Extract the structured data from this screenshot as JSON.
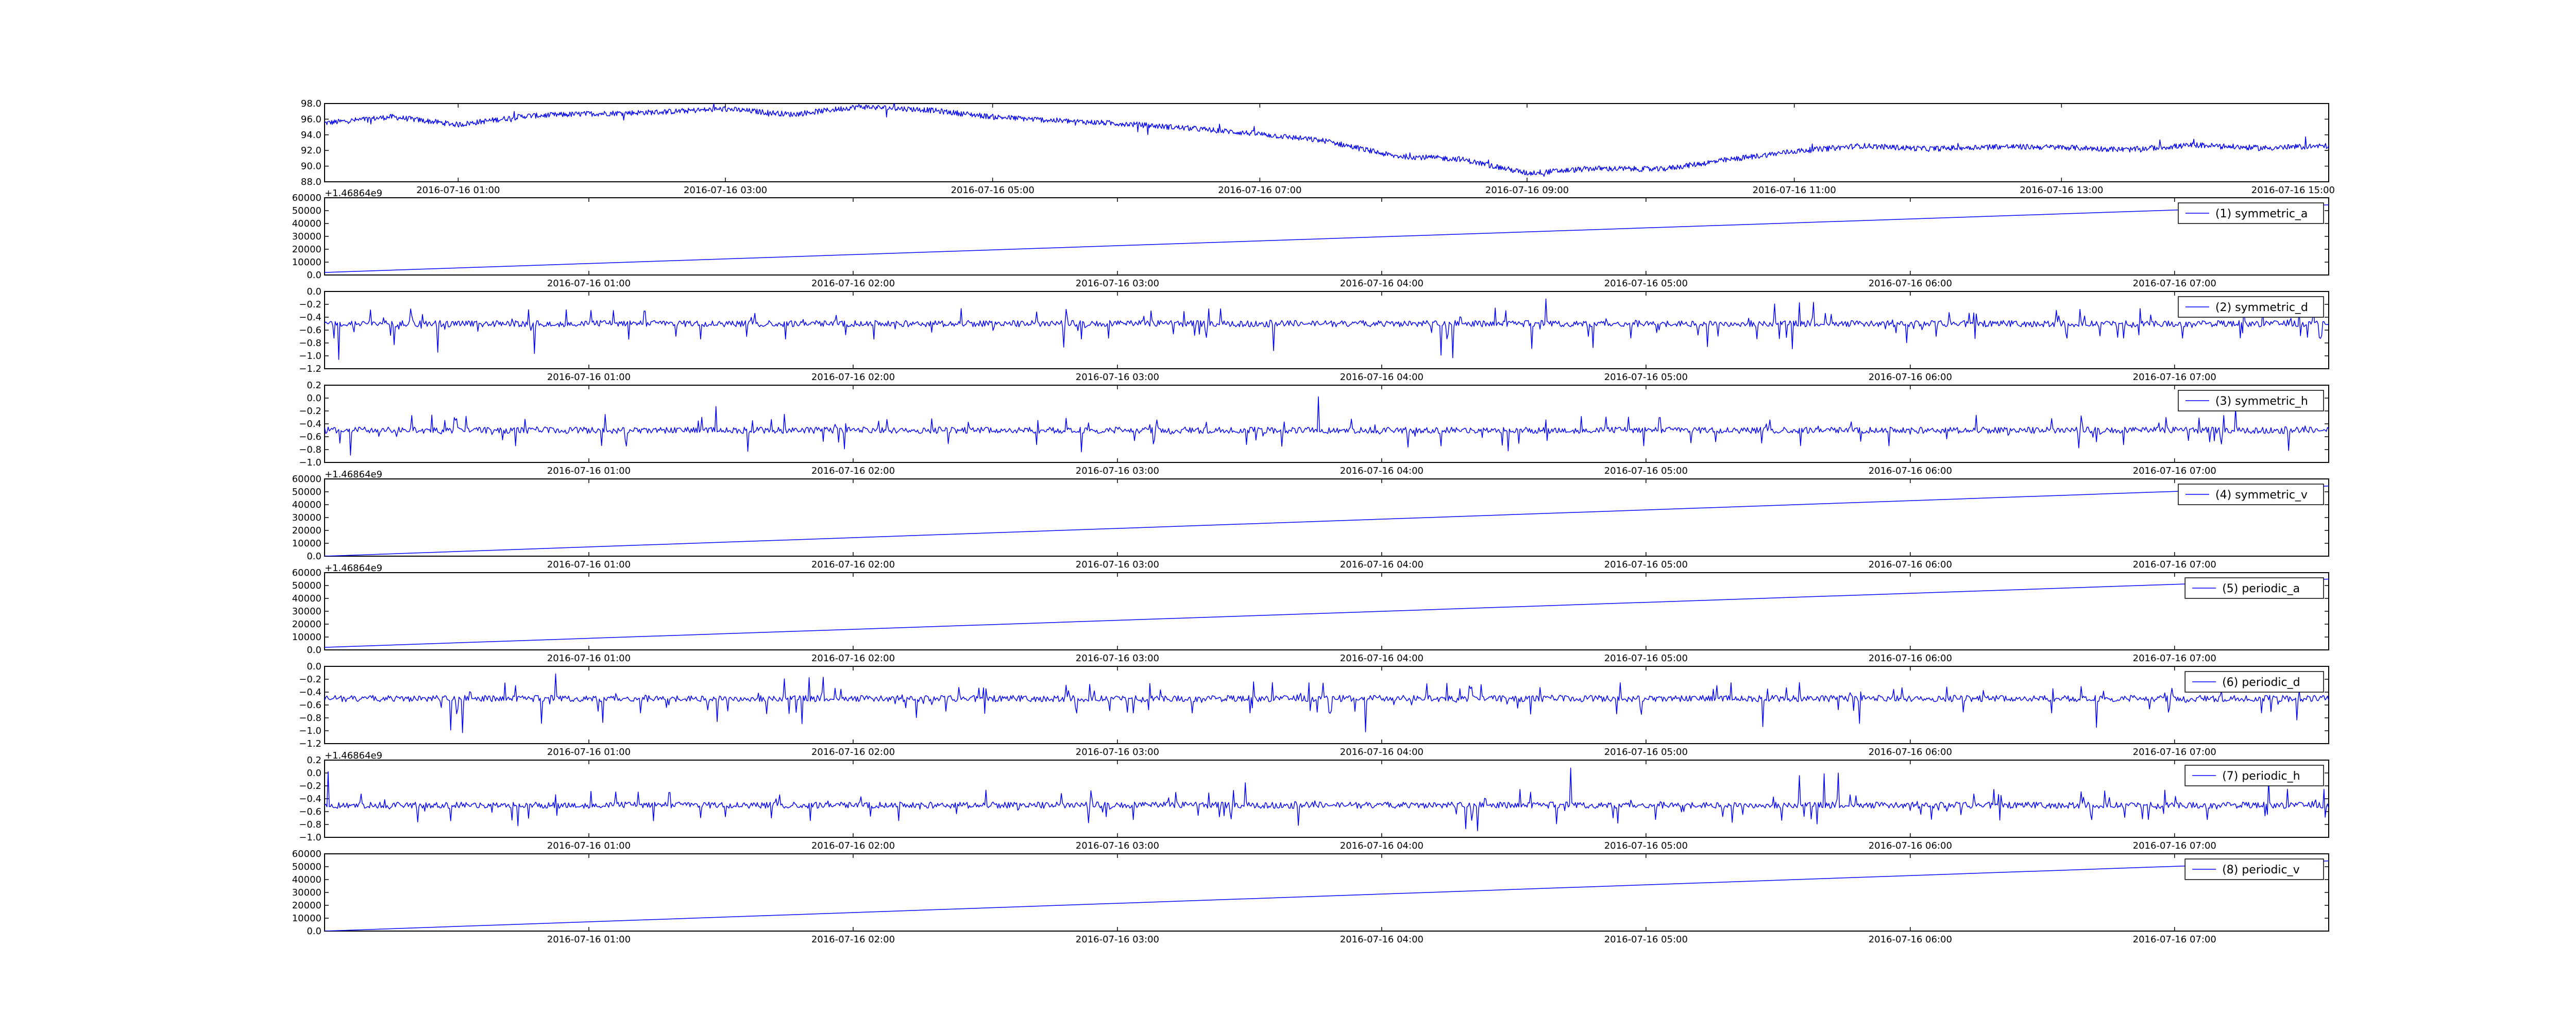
{
  "colors": {
    "line": "#0000ff",
    "axes": "#000000",
    "background": "#ffffff"
  },
  "chart_data": [
    {
      "type": "line",
      "panel": 0,
      "title": "",
      "xlabel": "",
      "ylabel": "",
      "x_axis": "datetime",
      "xlim": [
        "2016-07-16 00:00",
        "2016-07-16 15:00"
      ],
      "ylim": [
        88,
        98
      ],
      "yticks": [
        88,
        90,
        92,
        94,
        96,
        98
      ],
      "xticks": [
        "2016-07-16 01:00",
        "2016-07-16 03:00",
        "2016-07-16 05:00",
        "2016-07-16 07:00",
        "2016-07-16 09:00",
        "2016-07-16 11:00",
        "2016-07-16 13:00",
        "2016-07-16 15:00"
      ],
      "y_offset_label": "",
      "grid": false,
      "legend": null,
      "series": [
        {
          "x": [
            "2016-07-16 00:00",
            "2016-07-16 00:30",
            "2016-07-16 01:00",
            "2016-07-16 01:30",
            "2016-07-16 02:00",
            "2016-07-16 02:30",
            "2016-07-16 03:00",
            "2016-07-16 03:30",
            "2016-07-16 04:00",
            "2016-07-16 04:30",
            "2016-07-16 05:00",
            "2016-07-16 05:30",
            "2016-07-16 06:00",
            "2016-07-16 06:30",
            "2016-07-16 07:00",
            "2016-07-16 07:30",
            "2016-07-16 08:00",
            "2016-07-16 08:30",
            "2016-07-16 09:00",
            "2016-07-16 09:30",
            "2016-07-16 10:00",
            "2016-07-16 10:30",
            "2016-07-16 11:00",
            "2016-07-16 11:30",
            "2016-07-16 12:00",
            "2016-07-16 12:30",
            "2016-07-16 13:00",
            "2016-07-16 13:30",
            "2016-07-16 14:00",
            "2016-07-16 14:30",
            "2016-07-16 15:00"
          ],
          "values": [
            95.5,
            96.3,
            95.3,
            96.4,
            96.7,
            96.9,
            97.3,
            96.6,
            97.6,
            97.2,
            96.3,
            95.8,
            95.4,
            94.8,
            94.1,
            93.2,
            91.3,
            90.9,
            89.1,
            89.7,
            89.6,
            90.8,
            91.9,
            92.6,
            92.2,
            92.5,
            92.4,
            92.1,
            92.7,
            92.3,
            92.6
          ],
          "noise": 0.35
        }
      ]
    },
    {
      "type": "line",
      "panel": 1,
      "title": "",
      "xlabel": "",
      "ylabel": "",
      "x_axis": "datetime",
      "xlim": [
        "2016-07-16 00:00",
        "2016-07-16 07:35"
      ],
      "ylim": [
        0,
        60000
      ],
      "yticks": [
        0,
        10000,
        20000,
        30000,
        40000,
        50000,
        60000
      ],
      "xticks": [
        "2016-07-16 01:00",
        "2016-07-16 02:00",
        "2016-07-16 03:00",
        "2016-07-16 04:00",
        "2016-07-16 05:00",
        "2016-07-16 06:00",
        "2016-07-16 07:00"
      ],
      "y_offset_label": "+1.46864e9",
      "grid": false,
      "legend": {
        "placement": "top-right",
        "entries": [
          "(1) symmetric_a"
        ]
      },
      "series": [
        {
          "name": "(1) symmetric_a",
          "x": [
            "2016-07-16 00:00",
            "2016-07-16 07:35"
          ],
          "values": [
            2000,
            54500
          ]
        }
      ]
    },
    {
      "type": "line",
      "panel": 2,
      "title": "",
      "xlabel": "",
      "ylabel": "",
      "x_axis": "datetime",
      "xlim": [
        "2016-07-16 00:00",
        "2016-07-16 07:35"
      ],
      "ylim": [
        -1.2,
        0.0
      ],
      "yticks": [
        -1.2,
        -1.0,
        -0.8,
        -0.6,
        -0.4,
        -0.2,
        0.0
      ],
      "xticks": [
        "2016-07-16 01:00",
        "2016-07-16 02:00",
        "2016-07-16 03:00",
        "2016-07-16 04:00",
        "2016-07-16 05:00",
        "2016-07-16 06:00",
        "2016-07-16 07:00"
      ],
      "y_offset_label": "",
      "grid": false,
      "legend": {
        "placement": "top-right",
        "entries": [
          "(2) symmetric_d"
        ]
      },
      "series": [
        {
          "name": "(2) symmetric_d",
          "baseline": -0.5,
          "noise": 0.05,
          "spikes_min": -1.1,
          "spikes_max": -0.1
        }
      ]
    },
    {
      "type": "line",
      "panel": 3,
      "title": "",
      "xlabel": "",
      "ylabel": "",
      "x_axis": "datetime",
      "xlim": [
        "2016-07-16 00:00",
        "2016-07-16 07:35"
      ],
      "ylim": [
        -1.0,
        0.2
      ],
      "yticks": [
        -1.0,
        -0.8,
        -0.6,
        -0.4,
        -0.2,
        0.0,
        0.2
      ],
      "xticks": [
        "2016-07-16 01:00",
        "2016-07-16 02:00",
        "2016-07-16 03:00",
        "2016-07-16 04:00",
        "2016-07-16 05:00",
        "2016-07-16 06:00",
        "2016-07-16 07:00"
      ],
      "y_offset_label": "",
      "grid": false,
      "legend": {
        "placement": "top-right",
        "entries": [
          "(3) symmetric_h"
        ]
      },
      "series": [
        {
          "name": "(3) symmetric_h",
          "baseline": -0.5,
          "noise": 0.05,
          "spikes_min": -0.95,
          "spikes_max": 0.1
        }
      ]
    },
    {
      "type": "line",
      "panel": 4,
      "title": "",
      "xlabel": "",
      "ylabel": "",
      "x_axis": "datetime",
      "xlim": [
        "2016-07-16 00:00",
        "2016-07-16 07:35"
      ],
      "ylim": [
        0,
        60000
      ],
      "yticks": [
        0,
        10000,
        20000,
        30000,
        40000,
        50000,
        60000
      ],
      "xticks": [
        "2016-07-16 01:00",
        "2016-07-16 02:00",
        "2016-07-16 03:00",
        "2016-07-16 04:00",
        "2016-07-16 05:00",
        "2016-07-16 06:00",
        "2016-07-16 07:00"
      ],
      "y_offset_label": "+1.46864e9",
      "grid": false,
      "legend": {
        "placement": "top-right",
        "entries": [
          "(4) symmetric_v"
        ]
      },
      "series": [
        {
          "name": "(4) symmetric_v",
          "x": [
            "2016-07-16 00:00",
            "2016-07-16 07:35"
          ],
          "values": [
            0,
            54500
          ]
        }
      ]
    },
    {
      "type": "line",
      "panel": 5,
      "title": "",
      "xlabel": "",
      "ylabel": "",
      "x_axis": "datetime",
      "xlim": [
        "2016-07-16 00:00",
        "2016-07-16 07:35"
      ],
      "ylim": [
        0,
        60000
      ],
      "yticks": [
        0,
        10000,
        20000,
        30000,
        40000,
        50000,
        60000
      ],
      "xticks": [
        "2016-07-16 01:00",
        "2016-07-16 02:00",
        "2016-07-16 03:00",
        "2016-07-16 04:00",
        "2016-07-16 05:00",
        "2016-07-16 06:00",
        "2016-07-16 07:00"
      ],
      "y_offset_label": "+1.46864e9",
      "grid": false,
      "legend": {
        "placement": "top-right",
        "entries": [
          "(5) periodic_a"
        ]
      },
      "series": [
        {
          "name": "(5) periodic_a",
          "x": [
            "2016-07-16 00:00",
            "2016-07-16 07:35"
          ],
          "values": [
            2000,
            55000
          ]
        }
      ]
    },
    {
      "type": "line",
      "panel": 6,
      "title": "",
      "xlabel": "",
      "ylabel": "",
      "x_axis": "datetime",
      "xlim": [
        "2016-07-16 00:00",
        "2016-07-16 07:35"
      ],
      "ylim": [
        -1.2,
        0.0
      ],
      "yticks": [
        -1.2,
        -1.0,
        -0.8,
        -0.6,
        -0.4,
        -0.2,
        0.0
      ],
      "xticks": [
        "2016-07-16 01:00",
        "2016-07-16 02:00",
        "2016-07-16 03:00",
        "2016-07-16 04:00",
        "2016-07-16 05:00",
        "2016-07-16 06:00",
        "2016-07-16 07:00"
      ],
      "y_offset_label": "",
      "grid": false,
      "legend": {
        "placement": "top-right",
        "entries": [
          "(6) periodic_d"
        ]
      },
      "series": [
        {
          "name": "(6) periodic_d",
          "baseline": -0.5,
          "noise": 0.05,
          "spikes_min": -1.1,
          "spikes_max": -0.1
        }
      ]
    },
    {
      "type": "line",
      "panel": 7,
      "title": "",
      "xlabel": "",
      "ylabel": "",
      "x_axis": "datetime",
      "xlim": [
        "2016-07-16 00:00",
        "2016-07-16 07:35"
      ],
      "ylim": [
        -1.0,
        0.2
      ],
      "yticks": [
        -1.0,
        -0.8,
        -0.6,
        -0.4,
        -0.2,
        0.0,
        0.2
      ],
      "xticks": [
        "2016-07-16 01:00",
        "2016-07-16 02:00",
        "2016-07-16 03:00",
        "2016-07-16 04:00",
        "2016-07-16 05:00",
        "2016-07-16 06:00",
        "2016-07-16 07:00"
      ],
      "y_offset_label": "+1.46864e9",
      "grid": false,
      "legend": {
        "placement": "top-right",
        "entries": [
          "(7) periodic_h"
        ]
      },
      "series": [
        {
          "name": "(7) periodic_h",
          "baseline": -0.5,
          "noise": 0.05,
          "spikes_min": -0.95,
          "spikes_max": 0.1
        }
      ]
    },
    {
      "type": "line",
      "panel": 8,
      "title": "",
      "xlabel": "",
      "ylabel": "",
      "x_axis": "datetime",
      "xlim": [
        "2016-07-16 00:00",
        "2016-07-16 07:35"
      ],
      "ylim": [
        0,
        60000
      ],
      "yticks": [
        0,
        10000,
        20000,
        30000,
        40000,
        50000,
        60000
      ],
      "xticks": [
        "2016-07-16 01:00",
        "2016-07-16 02:00",
        "2016-07-16 03:00",
        "2016-07-16 04:00",
        "2016-07-16 05:00",
        "2016-07-16 06:00",
        "2016-07-16 07:00"
      ],
      "y_offset_label": "",
      "grid": false,
      "legend": {
        "placement": "top-right",
        "entries": [
          "(8) periodic_v"
        ]
      },
      "series": [
        {
          "name": "(8) periodic_v",
          "x": [
            "2016-07-16 00:00",
            "2016-07-16 07:35"
          ],
          "values": [
            0,
            54500
          ]
        }
      ]
    }
  ]
}
